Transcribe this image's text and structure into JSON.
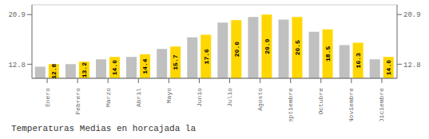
{
  "chart_data": {
    "type": "bar",
    "title": "Temperaturas Medias en horcajada la",
    "categories": [
      "Enero",
      "Febrero",
      "Marzo",
      "Abril",
      "Mayo",
      "Junio",
      "Julio",
      "Agosto",
      "Septiembre",
      "Octubre",
      "Noviembre",
      "Diciembre"
    ],
    "series": [
      {
        "color": "#C0C0C0",
        "values": [
          12.4,
          12.8,
          13.6,
          14.0,
          15.3,
          17.2,
          19.6,
          20.5,
          20.1,
          18.1,
          15.9,
          13.6
        ]
      },
      {
        "color": "#FFD700",
        "values": [
          12.8,
          13.2,
          14.0,
          14.4,
          15.7,
          17.6,
          20.0,
          20.9,
          20.5,
          18.5,
          16.3,
          14.0
        ],
        "data_labels": true,
        "value_labels": [
          "12.8",
          "13.2",
          "14.0",
          "14.4",
          "15.7",
          "17.6",
          "20.0",
          "20.9",
          "20.5",
          "18.5",
          "16.3",
          "14.0"
        ]
      }
    ],
    "ylim": [
      10.5,
      22.5
    ],
    "yticks": [
      12.8,
      20.9
    ],
    "y2lim": [
      10.5,
      22.5
    ],
    "y2ticks": [
      12.8,
      20.9
    ],
    "grid": true
  }
}
